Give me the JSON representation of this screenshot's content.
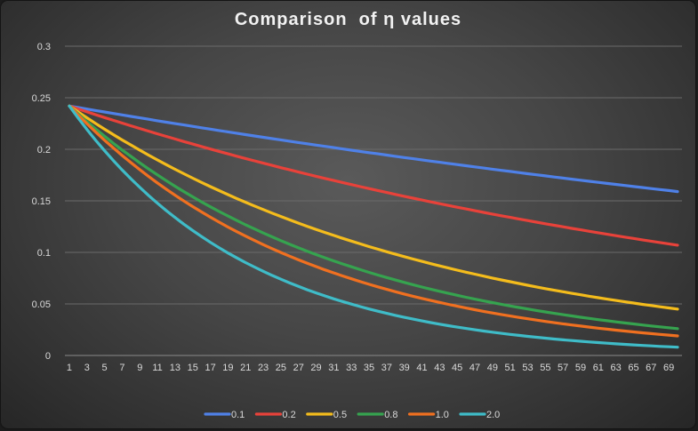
{
  "chart_data": {
    "type": "line",
    "title": "Comparison  of η values",
    "xlabel": "",
    "ylabel": "",
    "x_range": [
      1,
      70
    ],
    "x_tick_step": 2,
    "ylim": [
      0,
      0.3
    ],
    "y_ticks": [
      "0",
      "0.05",
      "0.1",
      "0.15",
      "0.2",
      "0.25",
      "0.3"
    ],
    "grid": "horizontal",
    "legend_position": "bottom",
    "start_value": 0.242,
    "series": [
      {
        "name": "0.1",
        "color": "#4f81e8",
        "end_value": 0.159
      },
      {
        "name": "0.2",
        "color": "#e8423a",
        "end_value": 0.107
      },
      {
        "name": "0.5",
        "color": "#f4bc1c",
        "end_value": 0.045
      },
      {
        "name": "0.8",
        "color": "#36a34f",
        "end_value": 0.026
      },
      {
        "name": "1.0",
        "color": "#f07020",
        "end_value": 0.019
      },
      {
        "name": "2.0",
        "color": "#3fbcc8",
        "end_value": 0.008
      }
    ]
  }
}
